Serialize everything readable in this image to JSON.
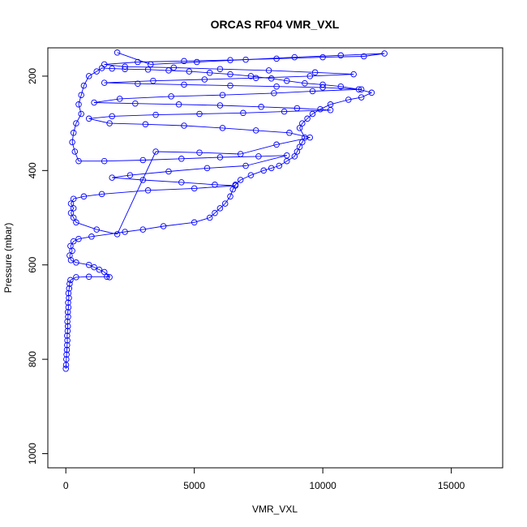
{
  "chart_data": {
    "type": "scatter",
    "title": "ORCAS RF04 VMR_VXL",
    "xlabel": "VMR_VXL",
    "ylabel": "Pressure (mbar)",
    "xlim": [
      -700,
      17000
    ],
    "ylim": [
      1030,
      140
    ],
    "y_reversed": true,
    "x_ticks": [
      0,
      5000,
      10000,
      15000
    ],
    "x_tick_labels": [
      "0",
      "5000",
      "10000",
      "15000"
    ],
    "y_ticks": [
      200,
      400,
      600,
      800,
      1000
    ],
    "y_tick_labels": [
      "200",
      "400",
      "600",
      "800",
      "1000"
    ],
    "grid": false,
    "colors": {
      "series": "#0000ff",
      "frame": "#000000",
      "background": "#ffffff"
    },
    "series": [
      {
        "style": "points-and-lines",
        "marker": "open-circle",
        "points": [
          [
            0,
            820
          ],
          [
            10,
            812
          ],
          [
            20,
            800
          ],
          [
            30,
            790
          ],
          [
            40,
            780
          ],
          [
            50,
            770
          ],
          [
            60,
            760
          ],
          [
            50,
            750
          ],
          [
            70,
            740
          ],
          [
            80,
            730
          ],
          [
            60,
            720
          ],
          [
            90,
            710
          ],
          [
            80,
            700
          ],
          [
            100,
            690
          ],
          [
            90,
            680
          ],
          [
            120,
            670
          ],
          [
            100,
            660
          ],
          [
            130,
            650
          ],
          [
            150,
            640
          ],
          [
            180,
            632
          ],
          [
            400,
            626
          ],
          [
            900,
            625
          ],
          [
            1600,
            625
          ],
          [
            1700,
            626
          ],
          [
            1500,
            615
          ],
          [
            1300,
            610
          ],
          [
            1100,
            605
          ],
          [
            900,
            600
          ],
          [
            400,
            595
          ],
          [
            200,
            590
          ],
          [
            150,
            580
          ],
          [
            250,
            570
          ],
          [
            180,
            560
          ],
          [
            300,
            550
          ],
          [
            500,
            545
          ],
          [
            1000,
            540
          ],
          [
            2300,
            530
          ],
          [
            3000,
            525
          ],
          [
            3800,
            518
          ],
          [
            5000,
            510
          ],
          [
            5600,
            500
          ],
          [
            5800,
            490
          ],
          [
            6000,
            480
          ],
          [
            6200,
            470
          ],
          [
            6400,
            455
          ],
          [
            6500,
            440
          ],
          [
            6600,
            430
          ],
          [
            6800,
            420
          ],
          [
            7200,
            410
          ],
          [
            7700,
            400
          ],
          [
            8000,
            395
          ],
          [
            8300,
            390
          ],
          [
            8600,
            380
          ],
          [
            8900,
            370
          ],
          [
            9000,
            360
          ],
          [
            9100,
            350
          ],
          [
            9200,
            340
          ],
          [
            9300,
            330
          ],
          [
            9100,
            310
          ],
          [
            9200,
            300
          ],
          [
            9400,
            290
          ],
          [
            9600,
            280
          ],
          [
            9900,
            270
          ],
          [
            10300,
            260
          ],
          [
            11000,
            250
          ],
          [
            11500,
            245
          ],
          [
            11900,
            235
          ],
          [
            11400,
            228
          ],
          [
            10700,
            222
          ],
          [
            10000,
            218
          ],
          [
            9300,
            215
          ],
          [
            8600,
            210
          ],
          [
            8000,
            205
          ],
          [
            7200,
            200
          ],
          [
            6400,
            196
          ],
          [
            5600,
            193
          ],
          [
            4800,
            190
          ],
          [
            4000,
            188
          ],
          [
            3200,
            186
          ],
          [
            2300,
            185
          ],
          [
            1800,
            184
          ],
          [
            1400,
            183
          ],
          [
            1200,
            190
          ],
          [
            900,
            200
          ],
          [
            700,
            220
          ],
          [
            600,
            240
          ],
          [
            500,
            260
          ],
          [
            600,
            280
          ],
          [
            400,
            300
          ],
          [
            300,
            320
          ],
          [
            250,
            340
          ],
          [
            350,
            360
          ],
          [
            500,
            380
          ],
          [
            1500,
            380
          ],
          [
            3000,
            378
          ],
          [
            4500,
            375
          ],
          [
            6000,
            372
          ],
          [
            7500,
            370
          ],
          [
            8600,
            368
          ],
          [
            7000,
            390
          ],
          [
            5500,
            395
          ],
          [
            4000,
            402
          ],
          [
            2500,
            410
          ],
          [
            1800,
            415
          ],
          [
            3000,
            420
          ],
          [
            4500,
            425
          ],
          [
            5800,
            430
          ],
          [
            6600,
            432
          ],
          [
            5000,
            438
          ],
          [
            3200,
            442
          ],
          [
            1400,
            450
          ],
          [
            700,
            455
          ],
          [
            300,
            460
          ],
          [
            200,
            470
          ],
          [
            300,
            480
          ],
          [
            200,
            490
          ],
          [
            300,
            500
          ],
          [
            400,
            510
          ],
          [
            1200,
            525
          ],
          [
            2000,
            535
          ],
          [
            3500,
            360
          ],
          [
            5200,
            362
          ],
          [
            6800,
            365
          ],
          [
            8200,
            345
          ],
          [
            9500,
            330
          ],
          [
            8700,
            320
          ],
          [
            7400,
            315
          ],
          [
            6100,
            310
          ],
          [
            4600,
            305
          ],
          [
            3100,
            302
          ],
          [
            1700,
            300
          ],
          [
            900,
            290
          ],
          [
            1800,
            285
          ],
          [
            3500,
            282
          ],
          [
            5200,
            280
          ],
          [
            6900,
            278
          ],
          [
            8500,
            275
          ],
          [
            10300,
            272
          ],
          [
            9000,
            268
          ],
          [
            7600,
            265
          ],
          [
            6000,
            262
          ],
          [
            4400,
            260
          ],
          [
            2700,
            258
          ],
          [
            1100,
            256
          ],
          [
            2100,
            248
          ],
          [
            4100,
            243
          ],
          [
            6100,
            240
          ],
          [
            8100,
            236
          ],
          [
            9600,
            232
          ],
          [
            11500,
            228
          ],
          [
            10000,
            224
          ],
          [
            8200,
            222
          ],
          [
            6400,
            220
          ],
          [
            4600,
            218
          ],
          [
            2800,
            216
          ],
          [
            1500,
            214
          ],
          [
            3400,
            210
          ],
          [
            5400,
            207
          ],
          [
            7400,
            204
          ],
          [
            9500,
            200
          ],
          [
            11200,
            196
          ],
          [
            9700,
            192
          ],
          [
            7900,
            188
          ],
          [
            6000,
            185
          ],
          [
            4200,
            182
          ],
          [
            2300,
            180
          ],
          [
            1500,
            175
          ],
          [
            2800,
            170
          ],
          [
            4600,
            168
          ],
          [
            6400,
            166
          ],
          [
            8200,
            163
          ],
          [
            10000,
            160
          ],
          [
            11600,
            158
          ],
          [
            12400,
            152
          ],
          [
            10700,
            156
          ],
          [
            8900,
            160
          ],
          [
            7000,
            165
          ],
          [
            5100,
            170
          ],
          [
            3300,
            175
          ],
          [
            2000,
            150
          ]
        ]
      }
    ]
  }
}
